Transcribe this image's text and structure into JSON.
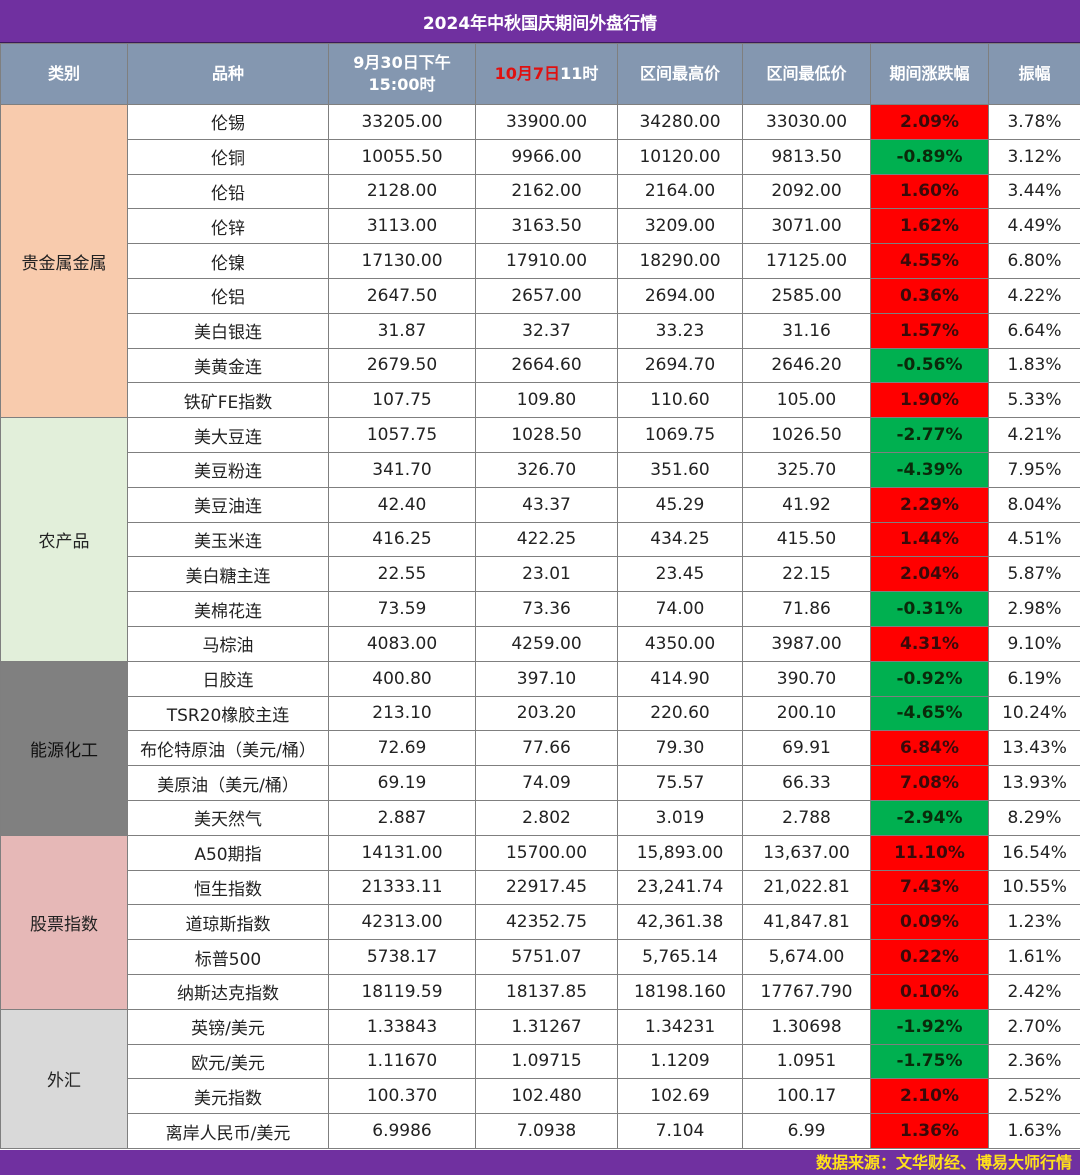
{
  "title": "2024年中秋国庆期间外盘行情",
  "headers": {
    "category": "类别",
    "product": "品种",
    "start_line1": "9月30日下午",
    "start_line2": "15:00时",
    "end_red": "10月7日",
    "end_rest": "11时",
    "high": "区间最高价",
    "low": "区间最低价",
    "change": "期间涨跌幅",
    "amplitude": "振幅"
  },
  "colors": {
    "title_bg": "#7030a0",
    "header_bg": "#8497b0",
    "up": "#ff0000",
    "down": "#00b050",
    "footer_text": "#ffe11a"
  },
  "groups": [
    {
      "name": "贵金属金属",
      "color": "#f8cbad",
      "text_color": "#222",
      "rows": [
        [
          "伦锡",
          "33205.00",
          "33900.00",
          "34280.00",
          "33030.00",
          "2.09%",
          "3.78%"
        ],
        [
          "伦铜",
          "10055.50",
          "9966.00",
          "10120.00",
          "9813.50",
          "-0.89%",
          "3.12%"
        ],
        [
          "伦铅",
          "2128.00",
          "2162.00",
          "2164.00",
          "2092.00",
          "1.60%",
          "3.44%"
        ],
        [
          "伦锌",
          "3113.00",
          "3163.50",
          "3209.00",
          "3071.00",
          "1.62%",
          "4.49%"
        ],
        [
          "伦镍",
          "17130.00",
          "17910.00",
          "18290.00",
          "17125.00",
          "4.55%",
          "6.80%"
        ],
        [
          "伦铝",
          "2647.50",
          "2657.00",
          "2694.00",
          "2585.00",
          "0.36%",
          "4.22%"
        ],
        [
          "美白银连",
          "31.87",
          "32.37",
          "33.23",
          "31.16",
          "1.57%",
          "6.64%"
        ],
        [
          "美黄金连",
          "2679.50",
          "2664.60",
          "2694.70",
          "2646.20",
          "-0.56%",
          "1.83%"
        ],
        [
          "铁矿FE指数",
          "107.75",
          "109.80",
          "110.60",
          "105.00",
          "1.90%",
          "5.33%"
        ]
      ]
    },
    {
      "name": "农产品",
      "color": "#e2efda",
      "text_color": "#222",
      "rows": [
        [
          "美大豆连",
          "1057.75",
          "1028.50",
          "1069.75",
          "1026.50",
          "-2.77%",
          "4.21%"
        ],
        [
          "美豆粉连",
          "341.70",
          "326.70",
          "351.60",
          "325.70",
          "-4.39%",
          "7.95%"
        ],
        [
          "美豆油连",
          "42.40",
          "43.37",
          "45.29",
          "41.92",
          "2.29%",
          "8.04%"
        ],
        [
          "美玉米连",
          "416.25",
          "422.25",
          "434.25",
          "415.50",
          "1.44%",
          "4.51%"
        ],
        [
          "美白糖主连",
          "22.55",
          "23.01",
          "23.45",
          "22.15",
          "2.04%",
          "5.87%"
        ],
        [
          "美棉花连",
          "73.59",
          "73.36",
          "74.00",
          "71.86",
          "-0.31%",
          "2.98%"
        ],
        [
          "马棕油",
          "4083.00",
          "4259.00",
          "4350.00",
          "3987.00",
          "4.31%",
          "9.10%"
        ]
      ]
    },
    {
      "name": "能源化工",
      "color": "#808080",
      "text_color": "#111",
      "rows": [
        [
          "日胶连",
          "400.80",
          "397.10",
          "414.90",
          "390.70",
          "-0.92%",
          "6.19%"
        ],
        [
          "TSR20橡胶主连",
          "213.10",
          "203.20",
          "220.60",
          "200.10",
          "-4.65%",
          "10.24%"
        ],
        [
          "布伦特原油（美元/桶）",
          "72.69",
          "77.66",
          "79.30",
          "69.91",
          "6.84%",
          "13.43%"
        ],
        [
          "美原油（美元/桶）",
          "69.19",
          "74.09",
          "75.57",
          "66.33",
          "7.08%",
          "13.93%"
        ],
        [
          "美天然气",
          "2.887",
          "2.802",
          "3.019",
          "2.788",
          "-2.94%",
          "8.29%"
        ]
      ]
    },
    {
      "name": "股票指数",
      "color": "#e6b8b7",
      "text_color": "#222",
      "rows": [
        [
          "A50期指",
          "14131.00",
          "15700.00",
          "15,893.00",
          "13,637.00",
          "11.10%",
          "16.54%"
        ],
        [
          "恒生指数",
          "21333.11",
          "22917.45",
          "23,241.74",
          "21,022.81",
          "7.43%",
          "10.55%"
        ],
        [
          "道琼斯指数",
          "42313.00",
          "42352.75",
          "42,361.38",
          "41,847.81",
          "0.09%",
          "1.23%"
        ],
        [
          "标普500",
          "5738.17",
          "5751.07",
          "5,765.14",
          "5,674.00",
          "0.22%",
          "1.61%"
        ],
        [
          "纳斯达克指数",
          "18119.59",
          "18137.85",
          "18198.160",
          "17767.790",
          "0.10%",
          "2.42%"
        ]
      ]
    },
    {
      "name": "外汇",
      "color": "#d9d9d9",
      "text_color": "#222",
      "rows": [
        [
          "英镑/美元",
          "1.33843",
          "1.31267",
          "1.34231",
          "1.30698",
          "-1.92%",
          "2.70%"
        ],
        [
          "欧元/美元",
          "1.11670",
          "1.09715",
          "1.1209",
          "1.0951",
          "-1.75%",
          "2.36%"
        ],
        [
          "美元指数",
          "100.370",
          "102.480",
          "102.69",
          "100.17",
          "2.10%",
          "2.52%"
        ],
        [
          "离岸人民币/美元",
          "6.9986",
          "7.0938",
          "7.104",
          "6.99",
          "1.36%",
          "1.63%"
        ]
      ]
    }
  ],
  "footer": "数据来源：文华财经、博易大师行情"
}
